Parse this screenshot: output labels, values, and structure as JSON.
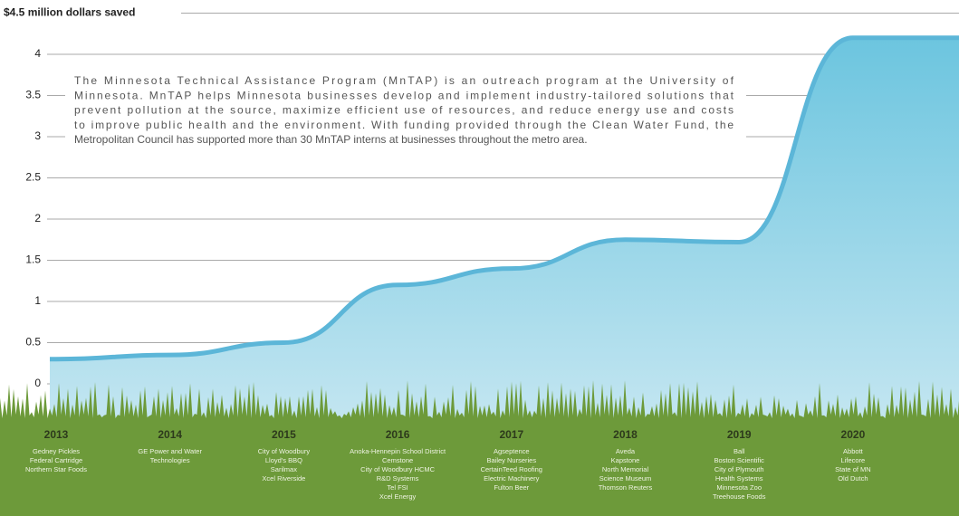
{
  "chart_data": {
    "type": "area",
    "description": [
      "The Minnesota Technical Assistance Program (MnTAP) is an outreach program at the University of",
      "Minnesota. MnTAP helps Minnesota businesses develop and implement industry-tailored solutions that",
      "prevent pollution at the source, maximize efficient use of resources, and reduce energy use and costs",
      "to improve public health and the environment. With funding provided through the Clean Water Fund, the",
      "Metropolitan Council has supported more than 30 MnTAP interns at businesses throughout the metro area."
    ],
    "categories": [
      "2013",
      "2014",
      "2015",
      "2016",
      "2017",
      "2018",
      "2019",
      "2020",
      null
    ],
    "values": [
      0.3,
      0.35,
      0.5,
      1.2,
      1.4,
      1.75,
      1.72,
      4.2,
      4.2
    ],
    "companies": [
      [
        "Gedney Pickles",
        "Federal Cartridge",
        "Northern Star Foods"
      ],
      [
        "GE Power and Water",
        "Technologies"
      ],
      [
        "City of Woodbury",
        "Lloyd's BBQ",
        "Sarilmax",
        "Xcel Riverside"
      ],
      [
        "Anoka-Hennepin School District",
        "Cemstone",
        "City of Woodbury HCMC",
        "R&D Systems",
        "Tel FSI",
        "Xcel Energy"
      ],
      [
        "Agseptence",
        "Bailey Nurseries",
        "CertainTeed Roofing",
        "Electric Machinery",
        "Fulton Beer"
      ],
      [
        "Aveda",
        "Kapstone",
        "North Memorial",
        "Science Museum",
        "Thomson Reuters"
      ],
      [
        "Ball",
        "Boston Scientific",
        "City of Plymouth",
        "Health Systems",
        "Minnesota Zoo",
        "Treehouse Foods"
      ],
      [
        "Abbott",
        "Lifecore",
        "State of MN",
        "Old Dutch"
      ],
      []
    ],
    "color": "#5cb6d8",
    "ylim": [
      0,
      4.5
    ],
    "yticks": [
      0,
      0.5,
      1,
      1.5,
      2,
      2.5,
      3,
      3.5,
      4,
      {
        "value": 4.5,
        "label": "$4.5 million dollars saved"
      }
    ],
    "grid": true
  }
}
